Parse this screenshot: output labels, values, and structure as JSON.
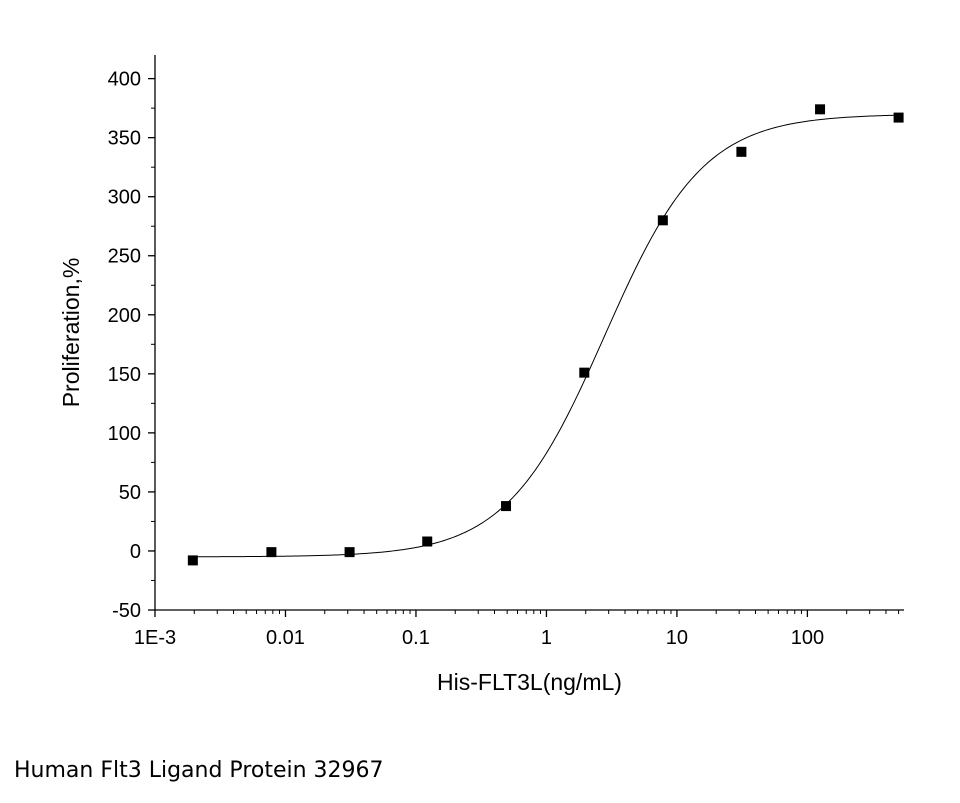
{
  "caption": "Human Flt3 Ligand Protein 32967",
  "chart_data": {
    "type": "scatter",
    "title": "",
    "xlabel": "His-FLT3L(ng/mL)",
    "ylabel": "Proliferation,%",
    "x_scale": "log",
    "xlim": [
      0.001,
      550
    ],
    "ylim": [
      -50,
      420
    ],
    "x_ticks": [
      {
        "value": 0.001,
        "label": "1E-3"
      },
      {
        "value": 0.01,
        "label": "0.01"
      },
      {
        "value": 0.1,
        "label": "0.1"
      },
      {
        "value": 1,
        "label": "1"
      },
      {
        "value": 10,
        "label": "10"
      },
      {
        "value": 100,
        "label": "100"
      }
    ],
    "y_ticks": [
      {
        "value": -50,
        "label": "-50"
      },
      {
        "value": 0,
        "label": "0"
      },
      {
        "value": 50,
        "label": "50"
      },
      {
        "value": 100,
        "label": "100"
      },
      {
        "value": 150,
        "label": "150"
      },
      {
        "value": 200,
        "label": "200"
      },
      {
        "value": 250,
        "label": "250"
      },
      {
        "value": 300,
        "label": "300"
      },
      {
        "value": 350,
        "label": "350"
      },
      {
        "value": 400,
        "label": "400"
      }
    ],
    "grid": false,
    "points": [
      {
        "x": 0.00195,
        "y": -8
      },
      {
        "x": 0.0078,
        "y": -1
      },
      {
        "x": 0.031,
        "y": -1
      },
      {
        "x": 0.122,
        "y": 8
      },
      {
        "x": 0.49,
        "y": 38
      },
      {
        "x": 1.95,
        "y": 151
      },
      {
        "x": 7.8,
        "y": 280
      },
      {
        "x": 31.2,
        "y": 338
      },
      {
        "x": 125,
        "y": 374
      },
      {
        "x": 500,
        "y": 367
      }
    ],
    "fit": {
      "type": "4PL",
      "bottom": -5,
      "top": 370,
      "ec50": 2.8,
      "hill": 1.15
    },
    "colors": {
      "markers": "#000000",
      "curve": "#000000",
      "axes": "#000000"
    }
  }
}
